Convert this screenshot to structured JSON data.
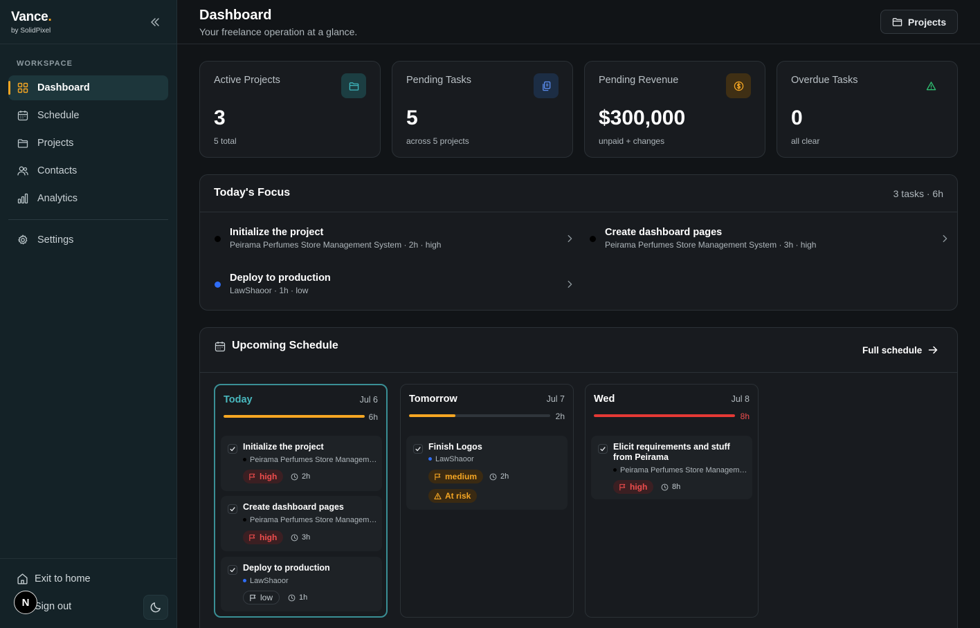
{
  "brand": {
    "name": "Vance",
    "dot": ".",
    "sub": "by SolidPixel"
  },
  "sidebar": {
    "section_label": "WORKSPACE",
    "items": [
      {
        "label": "Dashboard",
        "icon": "grid-icon",
        "active": true
      },
      {
        "label": "Schedule",
        "icon": "calendar-icon"
      },
      {
        "label": "Projects",
        "icon": "folder-icon"
      },
      {
        "label": "Contacts",
        "icon": "users-icon"
      },
      {
        "label": "Analytics",
        "icon": "bar-chart-icon"
      },
      {
        "label": "Settings",
        "icon": "gear-icon"
      }
    ],
    "exit_label": "Exit to home",
    "signout_label": "Sign out",
    "avatar_letter": "N"
  },
  "header": {
    "title": "Dashboard",
    "subtitle": "Your freelance operation at a glance.",
    "projects_button": "Projects"
  },
  "stats": [
    {
      "label": "Active Projects",
      "value": "3",
      "note": "5 total",
      "icon": "folder-icon",
      "accent": "#3fb6bd"
    },
    {
      "label": "Pending Tasks",
      "value": "5",
      "note": "across 5 projects",
      "icon": "copy-icon",
      "accent": "#5b8def"
    },
    {
      "label": "Pending Revenue",
      "value": "$300,000",
      "note": "unpaid + changes",
      "icon": "dollar-icon",
      "accent": "#f5a623"
    },
    {
      "label": "Overdue Tasks",
      "value": "0",
      "note": "all clear",
      "icon": "warning-icon",
      "accent": "#2fbf71"
    }
  ],
  "focus": {
    "title": "Today's Focus",
    "meta": "3 tasks · 6h",
    "tasks": [
      {
        "title": "Initialize the project",
        "meta": "Peirama Perfumes Store Management System · 2h · high",
        "dot": "#000000"
      },
      {
        "title": "Create dashboard pages",
        "meta": "Peirama Perfumes Store Management System · 3h · high",
        "dot": "#000000"
      },
      {
        "title": "Deploy to production",
        "meta": "LawShaoor · 1h · low",
        "dot": "#2f6df6"
      }
    ]
  },
  "schedule": {
    "title": "Upcoming Schedule",
    "full_link": "Full schedule",
    "days": [
      {
        "name": "Today",
        "date": "Jul 6",
        "hours": "6h",
        "load": 1.0,
        "bar_color": "#f5a623",
        "tasks": [
          {
            "title": "Initialize the project",
            "project": "Peirama Perfumes Store Management System",
            "project_dot": "#000000",
            "priority": "high",
            "duration": "2h"
          },
          {
            "title": "Create dashboard pages",
            "project": "Peirama Perfumes Store Management System",
            "project_dot": "#000000",
            "priority": "high",
            "duration": "3h"
          },
          {
            "title": "Deploy to production",
            "project": "LawShaoor",
            "project_dot": "#2f6df6",
            "priority": "low",
            "duration": "1h"
          }
        ]
      },
      {
        "name": "Tomorrow",
        "date": "Jul 7",
        "hours": "2h",
        "load": 0.33,
        "bar_color": "#f5a623",
        "tasks": [
          {
            "title": "Finish Logos",
            "project": "LawShaoor",
            "project_dot": "#2f6df6",
            "priority": "medium",
            "duration": "2h",
            "risk": "At risk"
          }
        ]
      },
      {
        "name": "Wed",
        "date": "Jul 8",
        "hours": "8h",
        "load": 1.0,
        "bar_color": "#e53935",
        "hours_color": "#ef4d4d",
        "tasks": [
          {
            "title": "Elicit requirements and stuff from Peirama",
            "project": "Peirama Perfumes Store Management System",
            "project_dot": "#000000",
            "priority": "high",
            "duration": "8h"
          }
        ]
      }
    ]
  }
}
